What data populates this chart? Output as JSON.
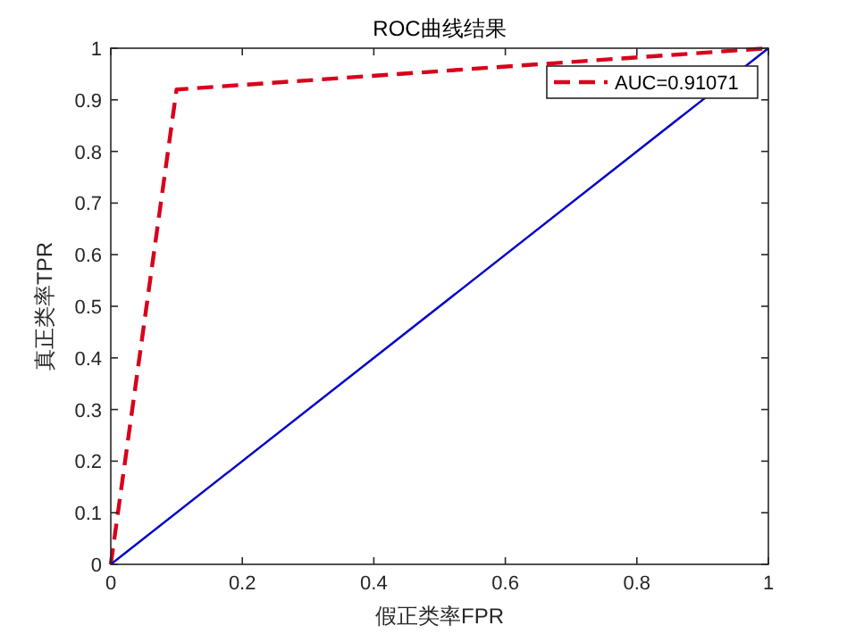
{
  "chart_data": {
    "type": "line",
    "title": "ROC曲线结果",
    "xlabel": "假正类率FPR",
    "ylabel": "真正类率TPR",
    "series": [
      {
        "name": "AUC=0.91071",
        "color": "#d9001b",
        "x": [
          0,
          0.1,
          1
        ],
        "values": [
          0,
          0.92,
          1
        ],
        "line_style": "dashed"
      },
      {
        "color": "#0000c8",
        "x": [
          0,
          1
        ],
        "values": [
          0,
          1
        ],
        "line_style": "solid"
      }
    ],
    "xlim": [
      0,
      1
    ],
    "ylim": [
      0,
      1
    ],
    "xticks": [
      0,
      0.2,
      0.4,
      0.6,
      0.8,
      1
    ],
    "yticks": [
      0,
      0.1,
      0.2,
      0.3,
      0.4,
      0.5,
      0.6,
      0.7,
      0.8,
      0.9,
      1
    ],
    "grid": false,
    "legend": "top right",
    "marker": "none"
  }
}
